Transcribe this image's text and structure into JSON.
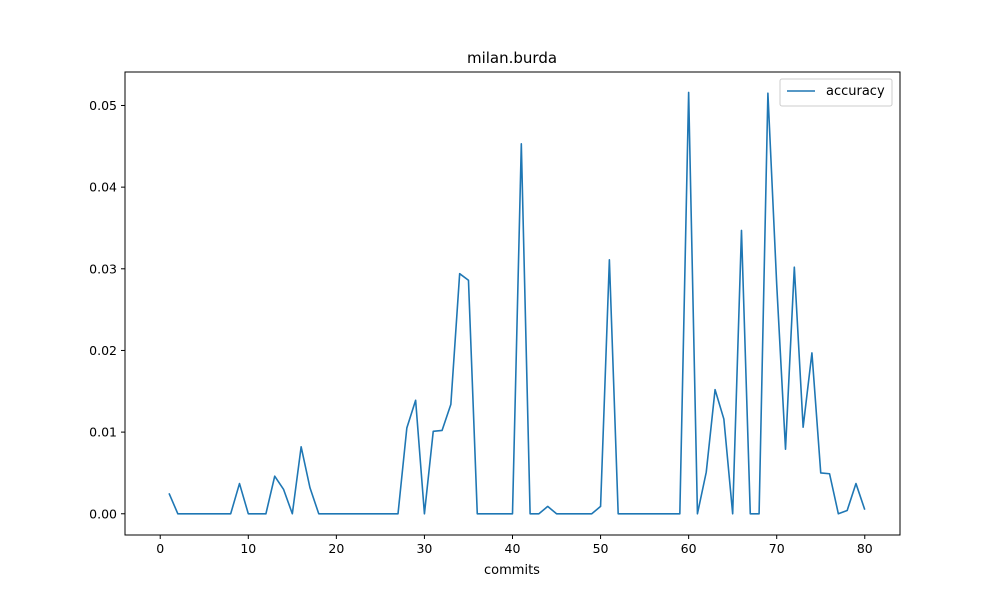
{
  "chart_data": {
    "type": "line",
    "title": "milan.burda",
    "xlabel": "commits",
    "ylabel": "",
    "xlim": [
      -4,
      84
    ],
    "ylim": [
      -0.0026,
      0.0541
    ],
    "xticks": [
      0,
      10,
      20,
      30,
      40,
      50,
      60,
      70,
      80
    ],
    "yticks": [
      0.0,
      0.01,
      0.02,
      0.03,
      0.04,
      0.05
    ],
    "ytick_labels": [
      "0.00",
      "0.01",
      "0.02",
      "0.03",
      "0.04",
      "0.05"
    ],
    "legend": {
      "position": "top-right",
      "entries": [
        "accuracy"
      ]
    },
    "grid": false,
    "line_color": "#1f77b4",
    "series": [
      {
        "name": "accuracy",
        "x": [
          1,
          2,
          3,
          4,
          5,
          6,
          7,
          8,
          9,
          10,
          11,
          12,
          13,
          14,
          15,
          16,
          17,
          18,
          19,
          20,
          21,
          22,
          23,
          24,
          25,
          26,
          27,
          28,
          29,
          30,
          31,
          32,
          33,
          34,
          35,
          36,
          37,
          38,
          39,
          40,
          41,
          42,
          43,
          44,
          45,
          46,
          47,
          48,
          49,
          50,
          51,
          52,
          53,
          54,
          55,
          56,
          57,
          58,
          59,
          60,
          61,
          62,
          63,
          64,
          65,
          66,
          67,
          68,
          69,
          70,
          71,
          72,
          73,
          74,
          75,
          76,
          77,
          78,
          79,
          80
        ],
        "values": [
          0.0025,
          0,
          0,
          0,
          0,
          0,
          0,
          0,
          0.0037,
          0,
          0,
          0,
          0.0046,
          0.003,
          0,
          0.0082,
          0.0032,
          0,
          0,
          0,
          0,
          0,
          0,
          0,
          0,
          0,
          0,
          0.0105,
          0.0139,
          0,
          0.0101,
          0.0102,
          0.0134,
          0.0294,
          0.0286,
          0,
          0,
          0,
          0,
          0,
          0.0453,
          0,
          0,
          0.0009,
          0,
          0,
          0,
          0,
          0,
          0.0009,
          0.0311,
          0,
          0,
          0,
          0,
          0,
          0,
          0,
          0,
          0.0516,
          0,
          0.0051,
          0.0152,
          0.0116,
          0,
          0.0347,
          0,
          0,
          0.0515,
          0.0281,
          0.0079,
          0.0302,
          0.0106,
          0.0197,
          0.005,
          0.0049,
          0,
          0.0004,
          0.0037,
          0.0005
        ]
      }
    ]
  }
}
